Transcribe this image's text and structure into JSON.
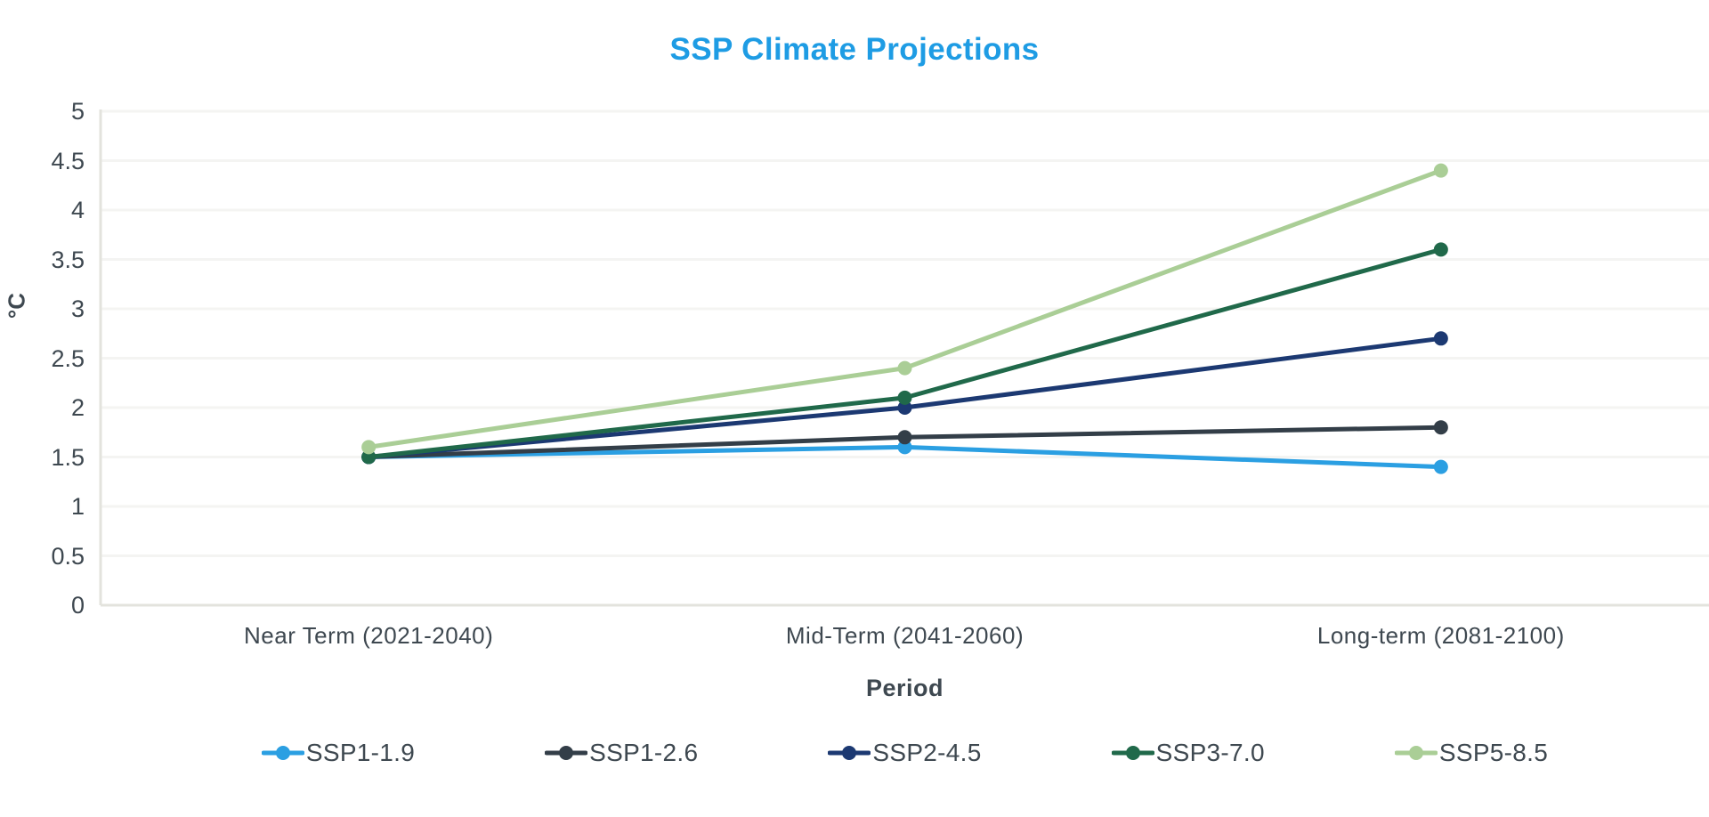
{
  "chart_data": {
    "type": "line",
    "title": "SSP Climate Projections",
    "xlabel": "Period",
    "ylabel": "°C",
    "categories": [
      "Near Term (2021-2040)",
      "Mid-Term (2041-2060)",
      "Long-term (2081-2100)"
    ],
    "series": [
      {
        "name": "SSP1-1.9",
        "color": "#2B9FE2",
        "values": [
          1.5,
          1.6,
          1.4
        ]
      },
      {
        "name": "SSP1-2.6",
        "color": "#333E48",
        "values": [
          1.5,
          1.7,
          1.8
        ]
      },
      {
        "name": "SSP2-4.5",
        "color": "#1C3972",
        "values": [
          1.5,
          2.0,
          2.7
        ]
      },
      {
        "name": "SSP3-7.0",
        "color": "#20694A",
        "values": [
          1.5,
          2.1,
          3.6
        ]
      },
      {
        "name": "SSP5-8.5",
        "color": "#AACE96",
        "values": [
          1.6,
          2.4,
          4.4
        ]
      }
    ],
    "ylim": [
      0,
      5
    ],
    "ytick_step": 0.5,
    "ytick_labels": [
      "0",
      "0.5",
      "1",
      "1.5",
      "2",
      "2.5",
      "3",
      "3.5",
      "4",
      "4.5",
      "5"
    ],
    "grid": true,
    "legend_position": "bottom",
    "colors": {
      "title": "#1E9CE4",
      "text": "#3E4850",
      "gridline": "#F4F4F2",
      "axis_line": "#E3E3DD"
    }
  }
}
